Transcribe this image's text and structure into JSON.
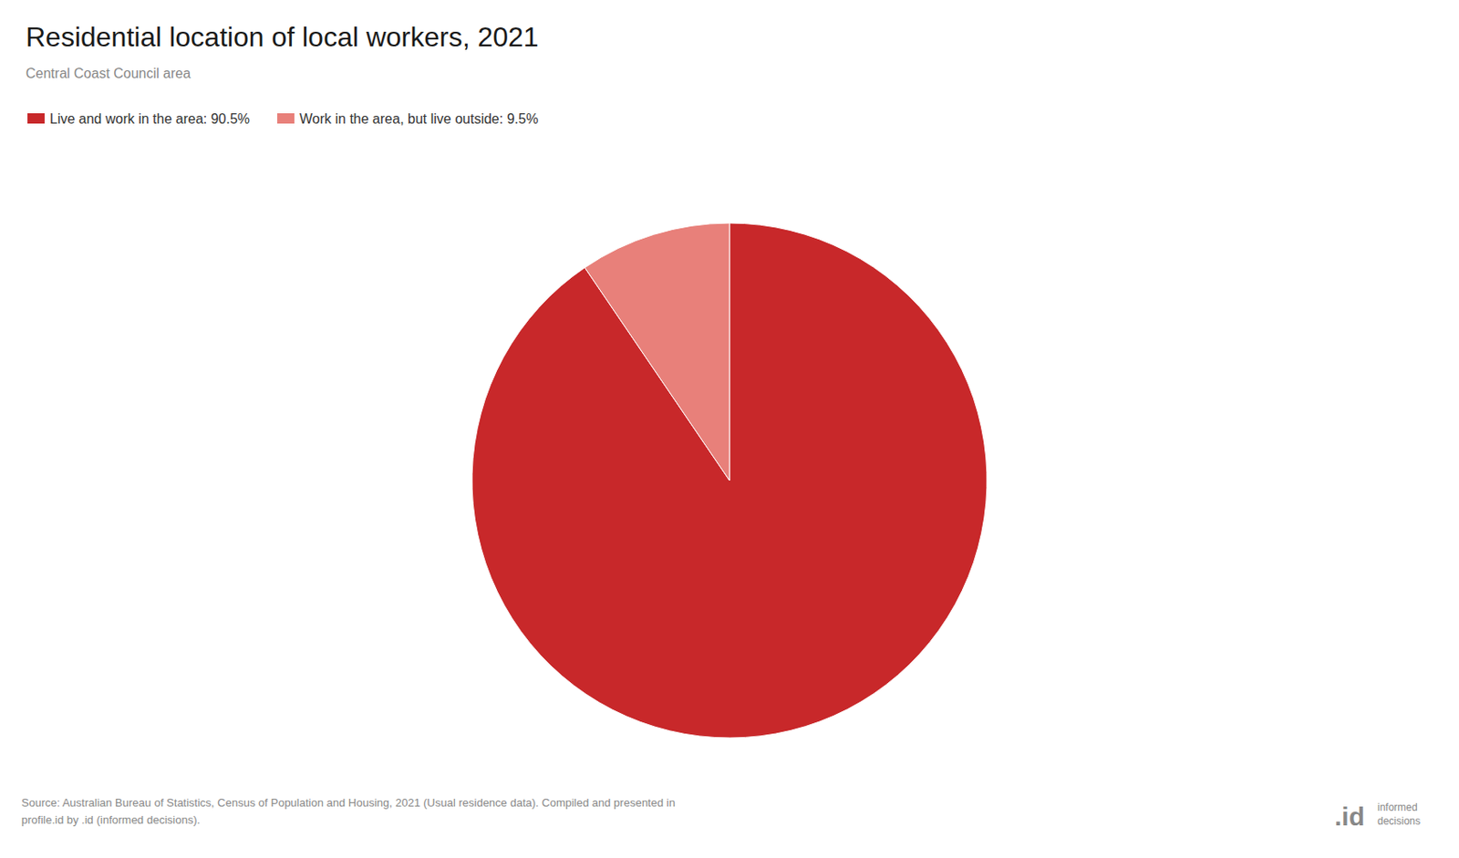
{
  "chart_data": {
    "type": "pie",
    "title": "Residential location of local workers, 2021",
    "subtitle": "Central Coast Council area",
    "categories": [
      "Live and work in the area: 90.5%",
      "Work in the area, but live outside: 9.5%"
    ],
    "values": [
      90.5,
      9.5
    ],
    "colors": [
      "#c8282a",
      "#e8807a"
    ],
    "legend": "upper left",
    "annotations": [
      "Source: Australian Bureau of Statistics, Census of Population and Housing, 2021 (Usual residence data). Compiled and presented in\nprofile.id by .id (informed decisions).",
      ".id",
      "informed\ndecisions"
    ]
  }
}
